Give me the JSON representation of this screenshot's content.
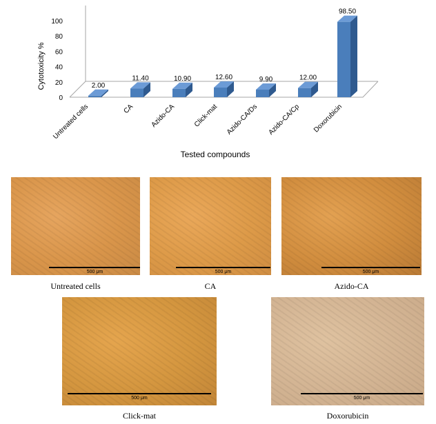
{
  "chart_data": {
    "type": "bar",
    "categories": [
      "Untreated cells",
      "CA",
      "Azido-CA",
      "Click-mat",
      "Azido-CA/Ds",
      "Azido-CA/Cp",
      "Doxorubicin"
    ],
    "values": [
      2.0,
      11.4,
      10.9,
      12.6,
      9.9,
      12.0,
      98.5
    ],
    "data_labels": [
      "2.00",
      "11.40",
      "10.90",
      "12.60",
      "9.90",
      "12.00",
      "98.50"
    ],
    "ylabel": "Cytotoxicity %",
    "xlabel": "Tested compounds",
    "ylim": [
      0,
      100
    ],
    "yticks": [
      "0",
      "20",
      "40",
      "60",
      "80",
      "100"
    ],
    "bar_color": "#4a7ebb",
    "grid": false,
    "style": "3d"
  },
  "micrographs": [
    {
      "caption": "Untreated cells",
      "scale_label": "500 μm",
      "colors": [
        "#e6a55f",
        "#d9954a",
        "#c98a45"
      ]
    },
    {
      "caption": "CA",
      "scale_label": "500 μm",
      "colors": [
        "#eaa85a",
        "#dd9a48",
        "#cf8d42"
      ]
    },
    {
      "caption": "Azido-CA",
      "scale_label": "500 μm",
      "colors": [
        "#e3a152",
        "#d18d3e",
        "#b97a35"
      ]
    },
    {
      "caption": "Click-mat",
      "scale_label": "500 μm",
      "colors": [
        "#e5a54e",
        "#d4963f",
        "#c28638"
      ]
    },
    {
      "caption": "Doxorubicin",
      "scale_label": "500 μm",
      "colors": [
        "#dfc2a0",
        "#d3b493",
        "#c9a988"
      ]
    }
  ]
}
